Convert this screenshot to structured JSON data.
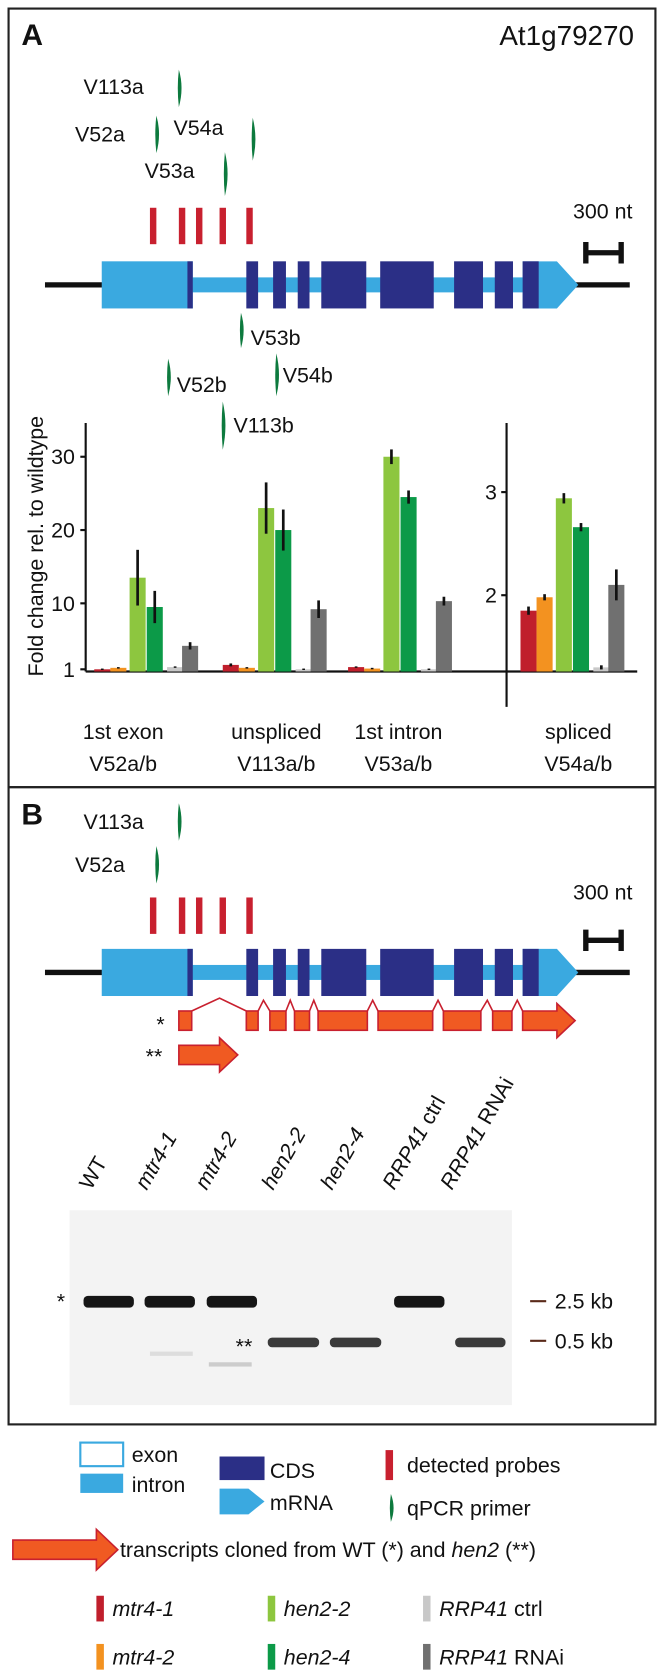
{
  "panel_a": {
    "label": "A",
    "gene": "At1g79270",
    "scale": "300 nt",
    "primers_top": [
      "V113a",
      "V52a",
      "V54a",
      "V53a"
    ],
    "primers_bottom": [
      "V53b",
      "V52b",
      "V54b",
      "V113b"
    ]
  },
  "chart_data": [
    {
      "type": "bar",
      "ylabel": "Fold change rel. to wildtype",
      "categories": [
        "1st exon",
        "unspliced",
        "1st intron"
      ],
      "category_primers": [
        "V52a/b",
        "V113a/b",
        "V53a/b"
      ],
      "ylim": [
        0.7,
        34.6
      ],
      "yticks": [
        1,
        10,
        20,
        30
      ],
      "series": [
        {
          "name": "mtr4-1",
          "color": "#c01f2c",
          "values": [
            1.0,
            1.6,
            1.3
          ],
          "errors": [
            0.1,
            0.2,
            0.1
          ]
        },
        {
          "name": "mtr4-2",
          "color": "#f39220",
          "values": [
            1.2,
            1.2,
            1.1
          ],
          "errors": [
            0.1,
            0.1,
            0.1
          ]
        },
        {
          "name": "hen2-2",
          "color": "#8dc63f",
          "values": [
            13.5,
            23,
            30
          ],
          "errors": [
            3.8,
            3.5,
            1
          ]
        },
        {
          "name": "hen2-4",
          "color": "#0c9a48",
          "values": [
            9.5,
            20,
            24.5
          ],
          "errors": [
            2.2,
            2.8,
            0.9
          ]
        },
        {
          "name": "RRP41 ctrl",
          "color": "#c8c8c8",
          "values": [
            1.3,
            1.0,
            1.0
          ],
          "errors": [
            0.1,
            0.1,
            0.1
          ]
        },
        {
          "name": "RRP41 RNAi",
          "color": "#707070",
          "values": [
            4.2,
            9.2,
            10.3
          ],
          "errors": [
            0.5,
            1.2,
            0.6
          ]
        }
      ]
    },
    {
      "type": "bar",
      "categories": [
        "spliced"
      ],
      "category_primers": [
        "V54a/b"
      ],
      "ylim": [
        1.26,
        3.67
      ],
      "yticks": [
        2,
        3
      ],
      "series": [
        {
          "color": "#c01f2c",
          "values": [
            1.85
          ],
          "errors": [
            0.04
          ]
        },
        {
          "color": "#f39220",
          "values": [
            1.98
          ],
          "errors": [
            0.03
          ]
        },
        {
          "color": "#8dc63f",
          "values": [
            2.94
          ],
          "errors": [
            0.05
          ]
        },
        {
          "color": "#0c9a48",
          "values": [
            2.66
          ],
          "errors": [
            0.04
          ]
        },
        {
          "color": "#c8c8c8",
          "values": [
            1.3
          ],
          "errors": [
            0.02
          ]
        },
        {
          "color": "#707070",
          "values": [
            2.1
          ],
          "errors": [
            0.15
          ]
        }
      ]
    }
  ],
  "panel_b": {
    "label": "B",
    "primers": [
      "V113a",
      "V52a"
    ],
    "scale": "300 nt",
    "transcript_marks": [
      "*",
      "**"
    ],
    "lanes": [
      "WT",
      "mtr4-1",
      "mtr4-2",
      "hen2-2",
      "hen2-4",
      "RRP41 ctrl",
      "RRP41 RNAi"
    ],
    "band_marks": [
      "*",
      "**"
    ],
    "sizes": [
      "2.5 kb",
      "0.5 kb"
    ]
  },
  "legend": {
    "exon": "exon",
    "intron": "intron",
    "cds": "CDS",
    "mrna": "mRNA",
    "probes": "detected probes",
    "primer": "qPCR primer",
    "transcripts": [
      "transcripts cloned from WT (*) and ",
      "hen2",
      " (**)"
    ]
  }
}
